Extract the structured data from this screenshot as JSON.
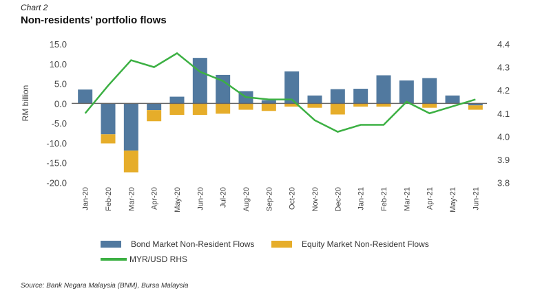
{
  "header": {
    "chart_label": "Chart 2",
    "title": "Non-residents’ portfolio flows"
  },
  "colors": {
    "bond": "#51799f",
    "equity": "#e6ad2a",
    "line": "#3cb043",
    "zero_line": "#666666"
  },
  "legend": {
    "bond": "Bond Market Non-Resident Flows",
    "equity": "Equity Market Non-Resident Flows",
    "line": "MYR/USD RHS"
  },
  "source": "Source: Bank Negara Malaysia (BNM), Bursa Malaysia",
  "chart_data": {
    "type": "bar",
    "title": "Non-residents’ portfolio flows",
    "ylabel": "RM billion",
    "y2label": "MYR/USD RHS",
    "xlabel": "",
    "ylim": [
      -20,
      15
    ],
    "y2lim": [
      3.8,
      4.4
    ],
    "yticks": [
      "15.0",
      "10.0",
      "5.0",
      "0.0",
      "-5.0",
      "-10.0",
      "-15.0",
      "-20.0"
    ],
    "y2ticks": [
      "4.4",
      "4.3",
      "4.2",
      "4.1",
      "4.0",
      "3.9",
      "3.8"
    ],
    "grid": false,
    "legend_position": "bottom",
    "stacked": true,
    "categories": [
      "Jan-20",
      "Feb-20",
      "Mar-20",
      "Apr-20",
      "May-20",
      "Jun-20",
      "Jul-20",
      "Aug-20",
      "Sep-20",
      "Oct-20",
      "Nov-20",
      "Dec-20",
      "Jan-21",
      "Feb-21",
      "Mar-21",
      "Apr-21",
      "May-21",
      "Jun-21"
    ],
    "series": [
      {
        "name": "Bond Market Non-Resident Flows",
        "type": "bar",
        "axis": "left",
        "values": [
          3.5,
          -7.8,
          -11.9,
          -1.7,
          1.7,
          11.5,
          7.2,
          3.1,
          0.8,
          8.1,
          2.0,
          3.6,
          3.7,
          7.1,
          5.8,
          6.4,
          2.0,
          -0.5
        ]
      },
      {
        "name": "Equity Market Non-Resident Flows",
        "type": "bar",
        "axis": "left",
        "values": [
          0.0,
          -2.3,
          -5.5,
          -2.8,
          -2.9,
          -2.9,
          -2.6,
          -1.6,
          -1.9,
          -0.8,
          -1.1,
          -2.8,
          -0.8,
          -0.8,
          0.0,
          -1.1,
          0.0,
          -1.1
        ]
      },
      {
        "name": "MYR/USD RHS",
        "type": "line",
        "axis": "right",
        "values": [
          4.1,
          4.22,
          4.33,
          4.3,
          4.36,
          4.28,
          4.24,
          4.17,
          4.16,
          4.16,
          4.07,
          4.02,
          4.05,
          4.05,
          4.15,
          4.1,
          4.13,
          4.16
        ]
      }
    ]
  }
}
